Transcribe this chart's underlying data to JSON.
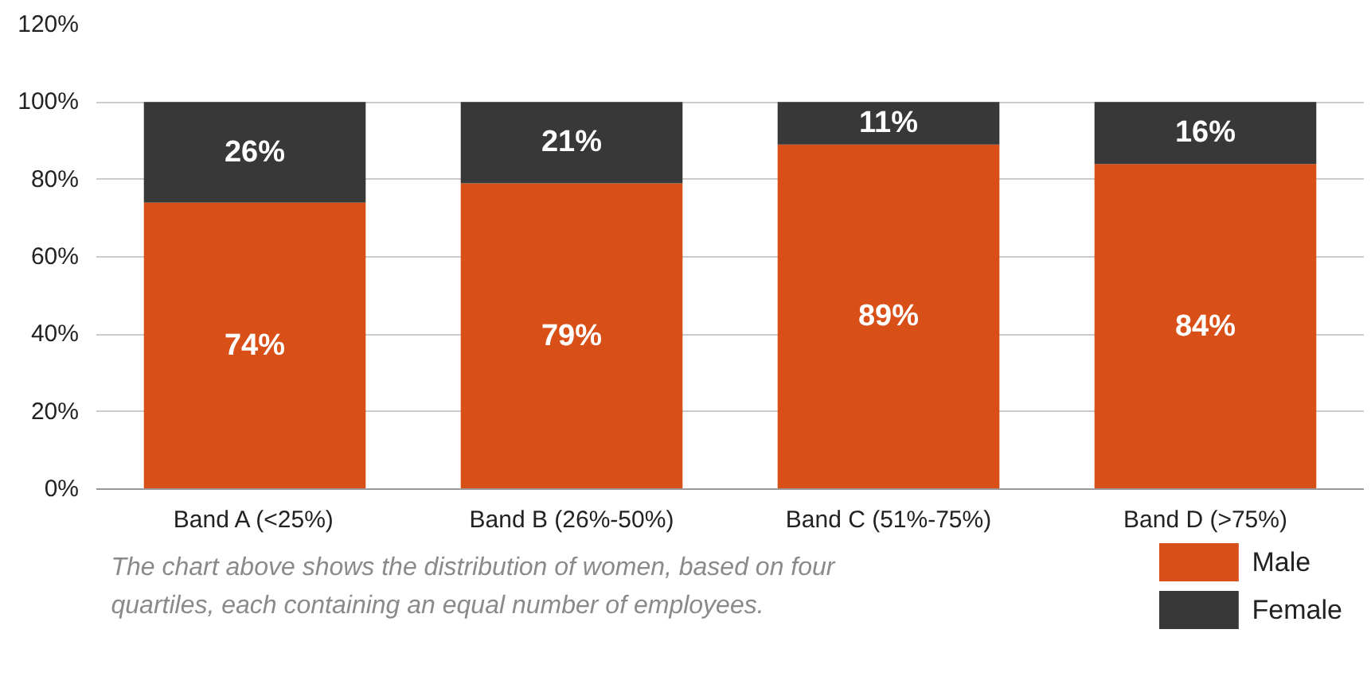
{
  "chart_data": {
    "type": "bar",
    "stacked": true,
    "categories": [
      "Band A (<25%)",
      "Band B (26%-50%)",
      "Band C (51%-75%)",
      "Band D (>75%)"
    ],
    "series": [
      {
        "name": "Male",
        "color": "#d94f18",
        "values": [
          74,
          79,
          89,
          84
        ],
        "value_labels": [
          "74%",
          "79%",
          "89%",
          "84%"
        ]
      },
      {
        "name": "Female",
        "color": "#383838",
        "values": [
          26,
          21,
          11,
          16
        ],
        "value_labels": [
          "26%",
          "21%",
          "11%",
          "16%"
        ]
      }
    ],
    "ylim": [
      0,
      120
    ],
    "yticks": [
      {
        "value": 0,
        "label": "0%"
      },
      {
        "value": 20,
        "label": "20%"
      },
      {
        "value": 40,
        "label": "40%"
      },
      {
        "value": 60,
        "label": "60%"
      },
      {
        "value": 80,
        "label": "80%"
      },
      {
        "value": 100,
        "label": "100%"
      },
      {
        "value": 120,
        "label": "120%"
      }
    ],
    "grid": "y",
    "legend": "bottom right",
    "annotations": [
      "The chart above shows the distribution of women, based on four quartiles, each containing an equal number of employees."
    ]
  }
}
